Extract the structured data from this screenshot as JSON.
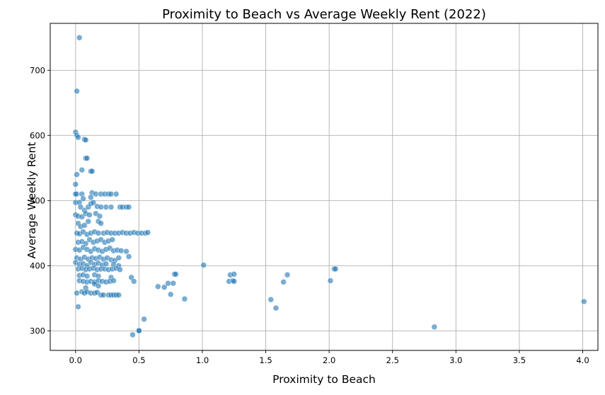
{
  "chart_data": {
    "type": "scatter",
    "title": "Proximity to Beach vs Average Weekly Rent (2022)",
    "xlabel": "Proximity to Beach",
    "ylabel": "Average Weekly Rent",
    "xlim": [
      -0.2,
      4.12
    ],
    "ylim": [
      270,
      772
    ],
    "xticks": [
      0.0,
      0.5,
      1.0,
      1.5,
      2.0,
      2.5,
      3.0,
      3.5,
      4.0
    ],
    "xtick_labels": [
      "0.0",
      "0.5",
      "1.0",
      "1.5",
      "2.0",
      "2.5",
      "3.0",
      "3.5",
      "4.0"
    ],
    "yticks": [
      300,
      400,
      500,
      600,
      700
    ],
    "ytick_labels": [
      "300",
      "400",
      "500",
      "600",
      "700"
    ],
    "grid": true,
    "marker_color": "#1f77b4",
    "marker_alpha": 0.6,
    "points": [
      [
        0.03,
        750
      ],
      [
        0.01,
        668
      ],
      [
        0.0,
        605
      ],
      [
        0.01,
        600
      ],
      [
        0.02,
        597
      ],
      [
        0.07,
        594
      ],
      [
        0.08,
        593
      ],
      [
        0.08,
        565
      ],
      [
        0.09,
        565
      ],
      [
        0.05,
        547
      ],
      [
        0.01,
        540
      ],
      [
        0.12,
        545
      ],
      [
        0.13,
        545
      ],
      [
        0.0,
        525
      ],
      [
        0.01,
        510
      ],
      [
        0.0,
        510
      ],
      [
        0.05,
        510
      ],
      [
        0.13,
        512
      ],
      [
        0.16,
        510
      ],
      [
        0.12,
        505
      ],
      [
        0.2,
        510
      ],
      [
        0.23,
        510
      ],
      [
        0.26,
        510
      ],
      [
        0.28,
        510
      ],
      [
        0.32,
        510
      ],
      [
        0.0,
        497
      ],
      [
        0.03,
        497
      ],
      [
        0.06,
        503
      ],
      [
        0.04,
        490
      ],
      [
        0.07,
        485
      ],
      [
        0.1,
        490
      ],
      [
        0.12,
        495
      ],
      [
        0.14,
        497
      ],
      [
        0.17,
        491
      ],
      [
        0.2,
        490
      ],
      [
        0.24,
        490
      ],
      [
        0.28,
        490
      ],
      [
        0.35,
        490
      ],
      [
        0.37,
        490
      ],
      [
        0.4,
        490
      ],
      [
        0.42,
        490
      ],
      [
        0.0,
        478
      ],
      [
        0.02,
        476
      ],
      [
        0.05,
        475
      ],
      [
        0.08,
        480
      ],
      [
        0.11,
        478
      ],
      [
        0.16,
        480
      ],
      [
        0.19,
        476
      ],
      [
        0.02,
        465
      ],
      [
        0.04,
        460
      ],
      [
        0.07,
        462
      ],
      [
        0.1,
        468
      ],
      [
        0.18,
        468
      ],
      [
        0.2,
        465
      ],
      [
        0.01,
        450
      ],
      [
        0.03,
        449
      ],
      [
        0.06,
        452
      ],
      [
        0.09,
        448
      ],
      [
        0.12,
        450
      ],
      [
        0.15,
        452
      ],
      [
        0.18,
        450
      ],
      [
        0.22,
        450
      ],
      [
        0.25,
        451
      ],
      [
        0.28,
        450
      ],
      [
        0.31,
        450
      ],
      [
        0.34,
        450
      ],
      [
        0.37,
        451
      ],
      [
        0.4,
        450
      ],
      [
        0.43,
        450
      ],
      [
        0.46,
        451
      ],
      [
        0.49,
        450
      ],
      [
        0.52,
        450
      ],
      [
        0.55,
        450
      ],
      [
        0.57,
        451
      ],
      [
        0.02,
        436
      ],
      [
        0.05,
        437
      ],
      [
        0.08,
        434
      ],
      [
        0.11,
        440
      ],
      [
        0.14,
        436
      ],
      [
        0.17,
        438
      ],
      [
        0.2,
        440
      ],
      [
        0.23,
        436
      ],
      [
        0.26,
        438
      ],
      [
        0.29,
        440
      ],
      [
        0.0,
        425
      ],
      [
        0.03,
        424
      ],
      [
        0.06,
        428
      ],
      [
        0.09,
        425
      ],
      [
        0.12,
        422
      ],
      [
        0.15,
        426
      ],
      [
        0.18,
        424
      ],
      [
        0.21,
        422
      ],
      [
        0.24,
        425
      ],
      [
        0.27,
        427
      ],
      [
        0.3,
        423
      ],
      [
        0.33,
        424
      ],
      [
        0.36,
        423
      ],
      [
        0.4,
        422
      ],
      [
        0.42,
        414
      ],
      [
        0.01,
        412
      ],
      [
        0.04,
        410
      ],
      [
        0.07,
        413
      ],
      [
        0.1,
        410
      ],
      [
        0.13,
        412
      ],
      [
        0.16,
        411
      ],
      [
        0.19,
        413
      ],
      [
        0.22,
        410
      ],
      [
        0.25,
        412
      ],
      [
        0.28,
        409
      ],
      [
        0.31,
        408
      ],
      [
        0.34,
        412
      ],
      [
        0.0,
        405
      ],
      [
        0.03,
        402
      ],
      [
        0.06,
        403
      ],
      [
        0.09,
        400
      ],
      [
        0.12,
        405
      ],
      [
        0.15,
        402
      ],
      [
        0.18,
        404
      ],
      [
        0.21,
        401
      ],
      [
        0.24,
        403
      ],
      [
        0.3,
        402
      ],
      [
        0.34,
        400
      ],
      [
        0.02,
        395
      ],
      [
        0.05,
        396
      ],
      [
        0.08,
        394
      ],
      [
        0.11,
        395
      ],
      [
        0.14,
        396
      ],
      [
        0.17,
        394
      ],
      [
        0.2,
        395
      ],
      [
        0.23,
        395
      ],
      [
        0.26,
        394
      ],
      [
        0.29,
        395
      ],
      [
        0.32,
        396
      ],
      [
        0.35,
        394
      ],
      [
        0.03,
        385
      ],
      [
        0.06,
        386
      ],
      [
        0.09,
        384
      ],
      [
        0.15,
        386
      ],
      [
        0.18,
        384
      ],
      [
        0.28,
        382
      ],
      [
        0.44,
        382
      ],
      [
        0.46,
        376
      ],
      [
        0.03,
        377
      ],
      [
        0.06,
        376
      ],
      [
        0.09,
        375
      ],
      [
        0.12,
        376
      ],
      [
        0.15,
        375
      ],
      [
        0.18,
        377
      ],
      [
        0.21,
        376
      ],
      [
        0.24,
        375
      ],
      [
        0.27,
        376
      ],
      [
        0.3,
        377
      ],
      [
        0.08,
        366
      ],
      [
        0.15,
        372
      ],
      [
        0.18,
        369
      ],
      [
        0.01,
        358
      ],
      [
        0.05,
        360
      ],
      [
        0.07,
        358
      ],
      [
        0.09,
        360
      ],
      [
        0.12,
        358
      ],
      [
        0.15,
        358
      ],
      [
        0.17,
        359
      ],
      [
        0.2,
        355
      ],
      [
        0.22,
        355
      ],
      [
        0.26,
        355
      ],
      [
        0.28,
        355
      ],
      [
        0.3,
        355
      ],
      [
        0.32,
        355
      ],
      [
        0.34,
        355
      ],
      [
        0.02,
        337
      ],
      [
        0.45,
        294
      ],
      [
        0.5,
        301
      ],
      [
        0.5,
        300
      ],
      [
        0.54,
        318
      ],
      [
        0.65,
        368
      ],
      [
        0.7,
        367
      ],
      [
        0.73,
        373
      ],
      [
        0.75,
        356
      ],
      [
        0.77,
        373
      ],
      [
        0.78,
        387
      ],
      [
        0.79,
        387
      ],
      [
        0.86,
        349
      ],
      [
        1.01,
        401
      ],
      [
        1.21,
        376
      ],
      [
        1.22,
        386
      ],
      [
        1.24,
        377
      ],
      [
        1.25,
        387
      ],
      [
        1.25,
        376
      ],
      [
        1.54,
        348
      ],
      [
        1.58,
        335
      ],
      [
        1.64,
        375
      ],
      [
        1.67,
        386
      ],
      [
        2.01,
        377
      ],
      [
        2.04,
        395
      ],
      [
        2.05,
        395
      ],
      [
        2.83,
        306
      ],
      [
        4.01,
        345
      ]
    ]
  }
}
